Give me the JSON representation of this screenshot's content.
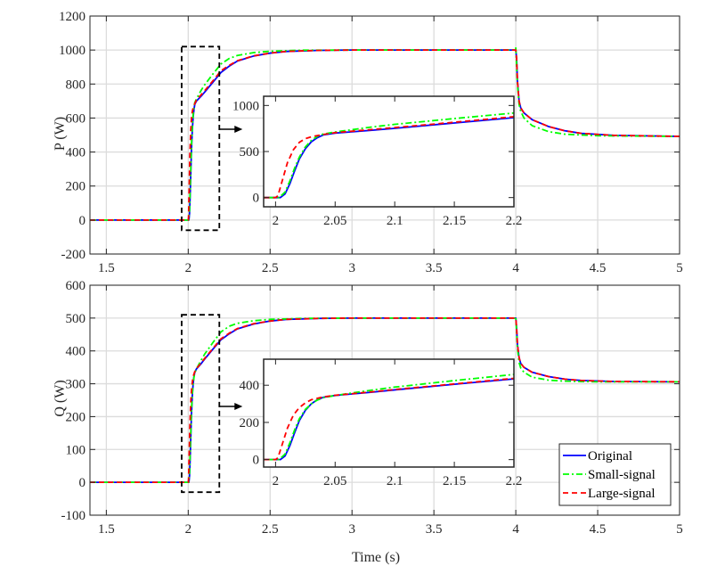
{
  "chart_data": [
    {
      "type": "line",
      "id": "P",
      "ylabel": "P (W)",
      "xlabel": "",
      "xlim": [
        1.4,
        5
      ],
      "ylim": [
        -200,
        1200
      ],
      "xticks": [
        1.5,
        2,
        2.5,
        3,
        3.5,
        4,
        4.5,
        5
      ],
      "xtick_labels": [
        "1.5",
        "2",
        "2.5",
        "3",
        "3.5",
        "4",
        "4.5",
        "5"
      ],
      "yticks": [
        -200,
        0,
        200,
        400,
        600,
        800,
        1000,
        1200
      ],
      "ytick_labels": [
        "-200",
        "0",
        "200",
        "400",
        "600",
        "800",
        "1000",
        "1200"
      ],
      "grid": true,
      "zoom_box": {
        "xlim": [
          1.96,
          2.19
        ],
        "ylim": [
          -60,
          1020
        ]
      },
      "inset": {
        "xlim": [
          1.99,
          2.2
        ],
        "ylim": [
          -100,
          1100
        ],
        "xticks": [
          2,
          2.05,
          2.1,
          2.15,
          2.2
        ],
        "xtick_labels": [
          "2",
          "2.05",
          "2.1",
          "2.15",
          "2.2"
        ],
        "yticks": [
          0,
          500,
          1000
        ],
        "ytick_labels": [
          "0",
          "500",
          "1000"
        ]
      },
      "series": [
        {
          "name": "Original",
          "color": "#0000ff",
          "style": "solid",
          "points": [
            [
              1.4,
              0
            ],
            [
              2.0,
              0
            ],
            [
              2.004,
              0
            ],
            [
              2.008,
              40
            ],
            [
              2.012,
              150
            ],
            [
              2.016,
              290
            ],
            [
              2.02,
              420
            ],
            [
              2.025,
              530
            ],
            [
              2.03,
              605
            ],
            [
              2.035,
              650
            ],
            [
              2.04,
              680
            ],
            [
              2.05,
              700
            ],
            [
              2.08,
              730
            ],
            [
              2.1,
              752
            ],
            [
              2.15,
              810
            ],
            [
              2.2,
              868
            ],
            [
              2.25,
              905
            ],
            [
              2.3,
              935
            ],
            [
              2.4,
              965
            ],
            [
              2.5,
              982
            ],
            [
              2.6,
              992
            ],
            [
              2.8,
              998
            ],
            [
              3,
              1000
            ],
            [
              4,
              1000
            ],
            [
              4.005,
              950
            ],
            [
              4.01,
              820
            ],
            [
              4.02,
              700
            ],
            [
              4.03,
              660
            ],
            [
              4.05,
              630
            ],
            [
              4.1,
              590
            ],
            [
              4.2,
              550
            ],
            [
              4.3,
              525
            ],
            [
              4.4,
              510
            ],
            [
              4.6,
              498
            ],
            [
              5,
              492
            ]
          ]
        },
        {
          "name": "Small-signal",
          "color": "#00ff00",
          "style": "dashdot",
          "points": [
            [
              1.4,
              0
            ],
            [
              2.0,
              0
            ],
            [
              2.003,
              0
            ],
            [
              2.008,
              60
            ],
            [
              2.012,
              180
            ],
            [
              2.016,
              320
            ],
            [
              2.02,
              440
            ],
            [
              2.025,
              550
            ],
            [
              2.03,
              620
            ],
            [
              2.035,
              665
            ],
            [
              2.04,
              690
            ],
            [
              2.05,
              712
            ],
            [
              2.08,
              765
            ],
            [
              2.1,
              795
            ],
            [
              2.15,
              858
            ],
            [
              2.2,
              918
            ],
            [
              2.25,
              950
            ],
            [
              2.3,
              968
            ],
            [
              2.4,
              985
            ],
            [
              2.5,
              993
            ],
            [
              2.7,
              999
            ],
            [
              3,
              1000
            ],
            [
              3.995,
              1000
            ],
            [
              4.0,
              1012
            ],
            [
              4.01,
              800
            ],
            [
              4.02,
              680
            ],
            [
              4.03,
              640
            ],
            [
              4.05,
              600
            ],
            [
              4.1,
              555
            ],
            [
              4.2,
              520
            ],
            [
              4.3,
              505
            ],
            [
              4.5,
              496
            ],
            [
              5,
              492
            ]
          ]
        },
        {
          "name": "Large-signal",
          "color": "#ff0000",
          "style": "dashed",
          "points": [
            [
              1.4,
              0
            ],
            [
              2.0,
              0
            ],
            [
              2.002,
              20
            ],
            [
              2.006,
              200
            ],
            [
              2.01,
              380
            ],
            [
              2.015,
              520
            ],
            [
              2.02,
              600
            ],
            [
              2.025,
              640
            ],
            [
              2.03,
              660
            ],
            [
              2.04,
              685
            ],
            [
              2.05,
              705
            ],
            [
              2.08,
              738
            ],
            [
              2.1,
              760
            ],
            [
              2.15,
              818
            ],
            [
              2.2,
              878
            ],
            [
              2.25,
              910
            ],
            [
              2.3,
              937
            ],
            [
              2.4,
              966
            ],
            [
              2.5,
              982
            ],
            [
              2.6,
              992
            ],
            [
              2.8,
              998
            ],
            [
              3,
              1000
            ],
            [
              4,
              1000
            ],
            [
              4.005,
              950
            ],
            [
              4.01,
              820
            ],
            [
              4.02,
              700
            ],
            [
              4.03,
              660
            ],
            [
              4.05,
              630
            ],
            [
              4.1,
              590
            ],
            [
              4.2,
              550
            ],
            [
              4.3,
              525
            ],
            [
              4.4,
              510
            ],
            [
              4.6,
              498
            ],
            [
              5,
              492
            ]
          ]
        }
      ]
    },
    {
      "type": "line",
      "id": "Q",
      "ylabel": "Q (W)",
      "xlabel": "Time (s)",
      "xlim": [
        1.4,
        5
      ],
      "ylim": [
        -100,
        600
      ],
      "xticks": [
        1.5,
        2,
        2.5,
        3,
        3.5,
        4,
        4.5,
        5
      ],
      "xtick_labels": [
        "1.5",
        "2",
        "2.5",
        "3",
        "3.5",
        "4",
        "4.5",
        "5"
      ],
      "yticks": [
        -100,
        0,
        100,
        200,
        300,
        400,
        500,
        600
      ],
      "ytick_labels": [
        "-100",
        "0",
        "100",
        "200",
        "300",
        "400",
        "500",
        "600"
      ],
      "grid": true,
      "zoom_box": {
        "xlim": [
          1.96,
          2.19
        ],
        "ylim": [
          -30,
          510
        ]
      },
      "inset": {
        "xlim": [
          1.99,
          2.2
        ],
        "ylim": [
          -40,
          540
        ],
        "xticks": [
          2,
          2.05,
          2.1,
          2.15,
          2.2
        ],
        "xtick_labels": [
          "2",
          "2.05",
          "2.1",
          "2.15",
          "2.2"
        ],
        "yticks": [
          0,
          200,
          400
        ],
        "ytick_labels": [
          "0",
          "200",
          "400"
        ]
      },
      "legend": {
        "position": "bottom-right",
        "entries": [
          "Original",
          "Small-signal",
          "Large-signal"
        ]
      },
      "series": [
        {
          "name": "Original",
          "color": "#0000ff",
          "style": "solid",
          "points": [
            [
              1.4,
              0
            ],
            [
              2.0,
              0
            ],
            [
              2.004,
              0
            ],
            [
              2.008,
              20
            ],
            [
              2.012,
              75
            ],
            [
              2.016,
              145
            ],
            [
              2.02,
              210
            ],
            [
              2.025,
              265
            ],
            [
              2.03,
              300
            ],
            [
              2.035,
              322
            ],
            [
              2.04,
              335
            ],
            [
              2.05,
              345
            ],
            [
              2.08,
              362
            ],
            [
              2.1,
              375
            ],
            [
              2.15,
              405
            ],
            [
              2.2,
              434
            ],
            [
              2.25,
              452
            ],
            [
              2.3,
              467
            ],
            [
              2.4,
              482
            ],
            [
              2.5,
              491
            ],
            [
              2.6,
              496
            ],
            [
              2.8,
              499
            ],
            [
              3,
              500
            ],
            [
              4,
              500
            ],
            [
              4.005,
              470
            ],
            [
              4.01,
              420
            ],
            [
              4.02,
              380
            ],
            [
              4.03,
              362
            ],
            [
              4.05,
              350
            ],
            [
              4.1,
              335
            ],
            [
              4.2,
              322
            ],
            [
              4.3,
              314
            ],
            [
              4.4,
              310
            ],
            [
              4.6,
              307
            ],
            [
              5,
              306
            ]
          ]
        },
        {
          "name": "Small-signal",
          "color": "#00ff00",
          "style": "dashdot",
          "points": [
            [
              1.4,
              0
            ],
            [
              2.0,
              0
            ],
            [
              2.003,
              0
            ],
            [
              2.008,
              30
            ],
            [
              2.012,
              90
            ],
            [
              2.016,
              160
            ],
            [
              2.02,
              220
            ],
            [
              2.025,
              270
            ],
            [
              2.03,
              300
            ],
            [
              2.035,
              320
            ],
            [
              2.04,
              333
            ],
            [
              2.05,
              345
            ],
            [
              2.08,
              373
            ],
            [
              2.1,
              390
            ],
            [
              2.15,
              425
            ],
            [
              2.2,
              458
            ],
            [
              2.25,
              475
            ],
            [
              2.3,
              484
            ],
            [
              2.4,
              492
            ],
            [
              2.5,
              496
            ],
            [
              2.7,
              499
            ],
            [
              3,
              500
            ],
            [
              3.995,
              500
            ],
            [
              4.0,
              504
            ],
            [
              4.01,
              410
            ],
            [
              4.02,
              365
            ],
            [
              4.03,
              348
            ],
            [
              4.05,
              335
            ],
            [
              4.1,
              320
            ],
            [
              4.2,
              311
            ],
            [
              4.3,
              308
            ],
            [
              4.5,
              306
            ],
            [
              5,
              306
            ]
          ]
        },
        {
          "name": "Large-signal",
          "color": "#ff0000",
          "style": "dashed",
          "points": [
            [
              1.4,
              0
            ],
            [
              2.0,
              0
            ],
            [
              2.002,
              10
            ],
            [
              2.006,
              90
            ],
            [
              2.01,
              170
            ],
            [
              2.015,
              240
            ],
            [
              2.02,
              280
            ],
            [
              2.025,
              305
            ],
            [
              2.03,
              322
            ],
            [
              2.04,
              337
            ],
            [
              2.05,
              346
            ],
            [
              2.08,
              364
            ],
            [
              2.1,
              377
            ],
            [
              2.15,
              407
            ],
            [
              2.2,
              437
            ],
            [
              2.25,
              454
            ],
            [
              2.3,
              468
            ],
            [
              2.4,
              483
            ],
            [
              2.5,
              491
            ],
            [
              2.6,
              496
            ],
            [
              2.8,
              499
            ],
            [
              3,
              500
            ],
            [
              4,
              500
            ],
            [
              4.005,
              470
            ],
            [
              4.01,
              420
            ],
            [
              4.02,
              380
            ],
            [
              4.03,
              362
            ],
            [
              4.05,
              350
            ],
            [
              4.1,
              335
            ],
            [
              4.2,
              322
            ],
            [
              4.3,
              314
            ],
            [
              4.4,
              310
            ],
            [
              4.6,
              307
            ],
            [
              5,
              306
            ]
          ]
        }
      ]
    }
  ]
}
